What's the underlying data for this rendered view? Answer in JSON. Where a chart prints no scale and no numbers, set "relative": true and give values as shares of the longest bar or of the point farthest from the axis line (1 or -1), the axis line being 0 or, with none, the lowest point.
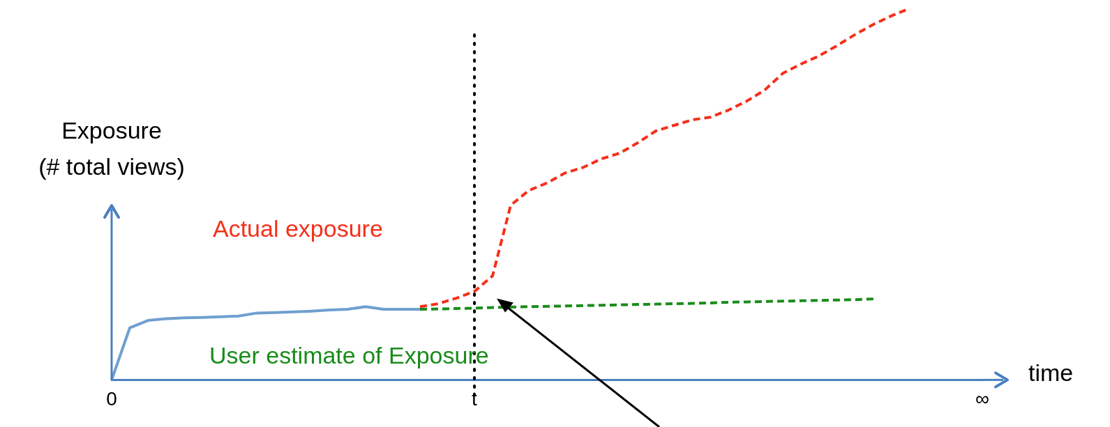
{
  "chart_data": {
    "type": "line",
    "relative": true,
    "xlabel": "time",
    "ylabel": "Exposure\n(# total views)",
    "categories": [
      "0",
      null,
      null,
      null,
      null,
      null,
      null,
      null,
      null,
      null,
      null,
      null,
      null,
      null,
      null,
      null,
      null,
      null,
      null,
      null,
      "t",
      null,
      null,
      null,
      null,
      null,
      null,
      null,
      null,
      null,
      null,
      null,
      null,
      null,
      null,
      null,
      null,
      null,
      null,
      null,
      null,
      null,
      null,
      null,
      null,
      null,
      null,
      null,
      "∞"
    ],
    "series": [
      {
        "color": "#6f9fd0",
        "line_style": "solid",
        "values": [
          0,
          0.14,
          0.16,
          0.165,
          0.167,
          0.168,
          0.17,
          0.172,
          0.18,
          0.181,
          0.183,
          0.185,
          0.188,
          0.19,
          0.197,
          0.19,
          0.19,
          0.19,
          null,
          null,
          null,
          null,
          null,
          null,
          null,
          null,
          null,
          null,
          null,
          null,
          null,
          null,
          null,
          null,
          null,
          null,
          null,
          null,
          null,
          null,
          null,
          null,
          null,
          null,
          null,
          null,
          null,
          null,
          null
        ]
      },
      {
        "name": "User estimate of Exposure",
        "color": "#1a8c1a",
        "line_style": "dashed",
        "values": [
          null,
          null,
          null,
          null,
          null,
          null,
          null,
          null,
          null,
          null,
          null,
          null,
          null,
          null,
          null,
          null,
          null,
          0.19,
          0.191,
          0.192,
          0.193,
          0.195,
          0.196,
          0.197,
          0.198,
          0.199,
          0.2,
          0.201,
          0.202,
          0.203,
          0.204,
          0.205,
          0.206,
          0.207,
          0.209,
          0.21,
          0.211,
          0.212,
          0.213,
          0.214,
          0.215,
          0.216,
          0.218,
          null,
          null,
          null,
          null,
          null,
          null
        ]
      },
      {
        "name": "Actual exposure",
        "color": "#f4301a",
        "line_style": "dashed",
        "values": [
          null,
          null,
          null,
          null,
          null,
          null,
          null,
          null,
          null,
          null,
          null,
          null,
          null,
          null,
          null,
          null,
          null,
          0.197,
          0.205,
          0.22,
          0.238,
          0.28,
          0.47,
          0.51,
          0.53,
          0.557,
          0.572,
          0.595,
          0.61,
          0.638,
          0.67,
          0.685,
          0.7,
          0.707,
          0.726,
          0.75,
          0.78,
          0.825,
          0.85,
          0.872,
          0.9,
          0.93,
          0.957,
          0.98,
          1,
          null,
          null,
          null,
          null
        ]
      }
    ],
    "ref_lines": [
      {
        "axis": "x",
        "value": "t",
        "color": "#000000",
        "line_style": "dotted"
      }
    ],
    "marker": "none",
    "legend": false,
    "grid": false
  }
}
